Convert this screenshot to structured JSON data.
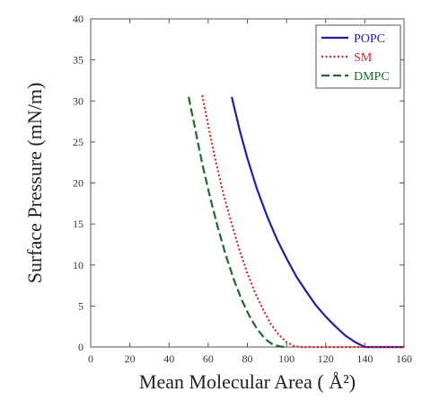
{
  "chart_data": {
    "type": "line",
    "title": "",
    "xlabel": "Mean Molecular Area (  Å²)",
    "ylabel": "Surface Pressure (mN/m)",
    "xlim": [
      0,
      160
    ],
    "ylim": [
      0,
      40
    ],
    "x_ticks": [
      0,
      20,
      40,
      60,
      80,
      100,
      120,
      140,
      160
    ],
    "y_ticks": [
      0,
      5,
      10,
      15,
      20,
      25,
      30,
      35,
      40
    ],
    "grid": false,
    "legend_position": "top-right",
    "series": [
      {
        "name": "POPC",
        "color": "#1f1fa0",
        "style": "solid",
        "x": [
          72,
          76,
          80,
          85,
          90,
          95,
          100,
          105,
          110,
          115,
          120,
          125,
          130,
          135,
          140,
          160
        ],
        "y": [
          30.5,
          26.5,
          23,
          19.2,
          16,
          13.2,
          10.8,
          8.6,
          6.8,
          5.1,
          3.7,
          2.5,
          1.4,
          0.6,
          0,
          0
        ]
      },
      {
        "name": "SM",
        "color": "#e02020",
        "style": "dotted",
        "x": [
          57,
          60,
          64,
          68,
          72,
          76,
          80,
          84,
          88,
          92,
          96,
          100,
          104,
          108,
          160
        ],
        "y": [
          30.7,
          27,
          22.5,
          18.5,
          15,
          11.8,
          9,
          6.6,
          4.6,
          2.8,
          1.5,
          0.6,
          0.1,
          0,
          0
        ]
      },
      {
        "name": "DMPC",
        "color": "#1a6b2a",
        "style": "dashed",
        "x": [
          50,
          53,
          57,
          61,
          65,
          69,
          73,
          77,
          81,
          85,
          89,
          93,
          97,
          100
        ],
        "y": [
          30.5,
          27,
          22.3,
          18.2,
          14.5,
          11.2,
          8.3,
          5.8,
          3.8,
          2.2,
          1.0,
          0.3,
          0.05,
          0
        ]
      }
    ]
  }
}
